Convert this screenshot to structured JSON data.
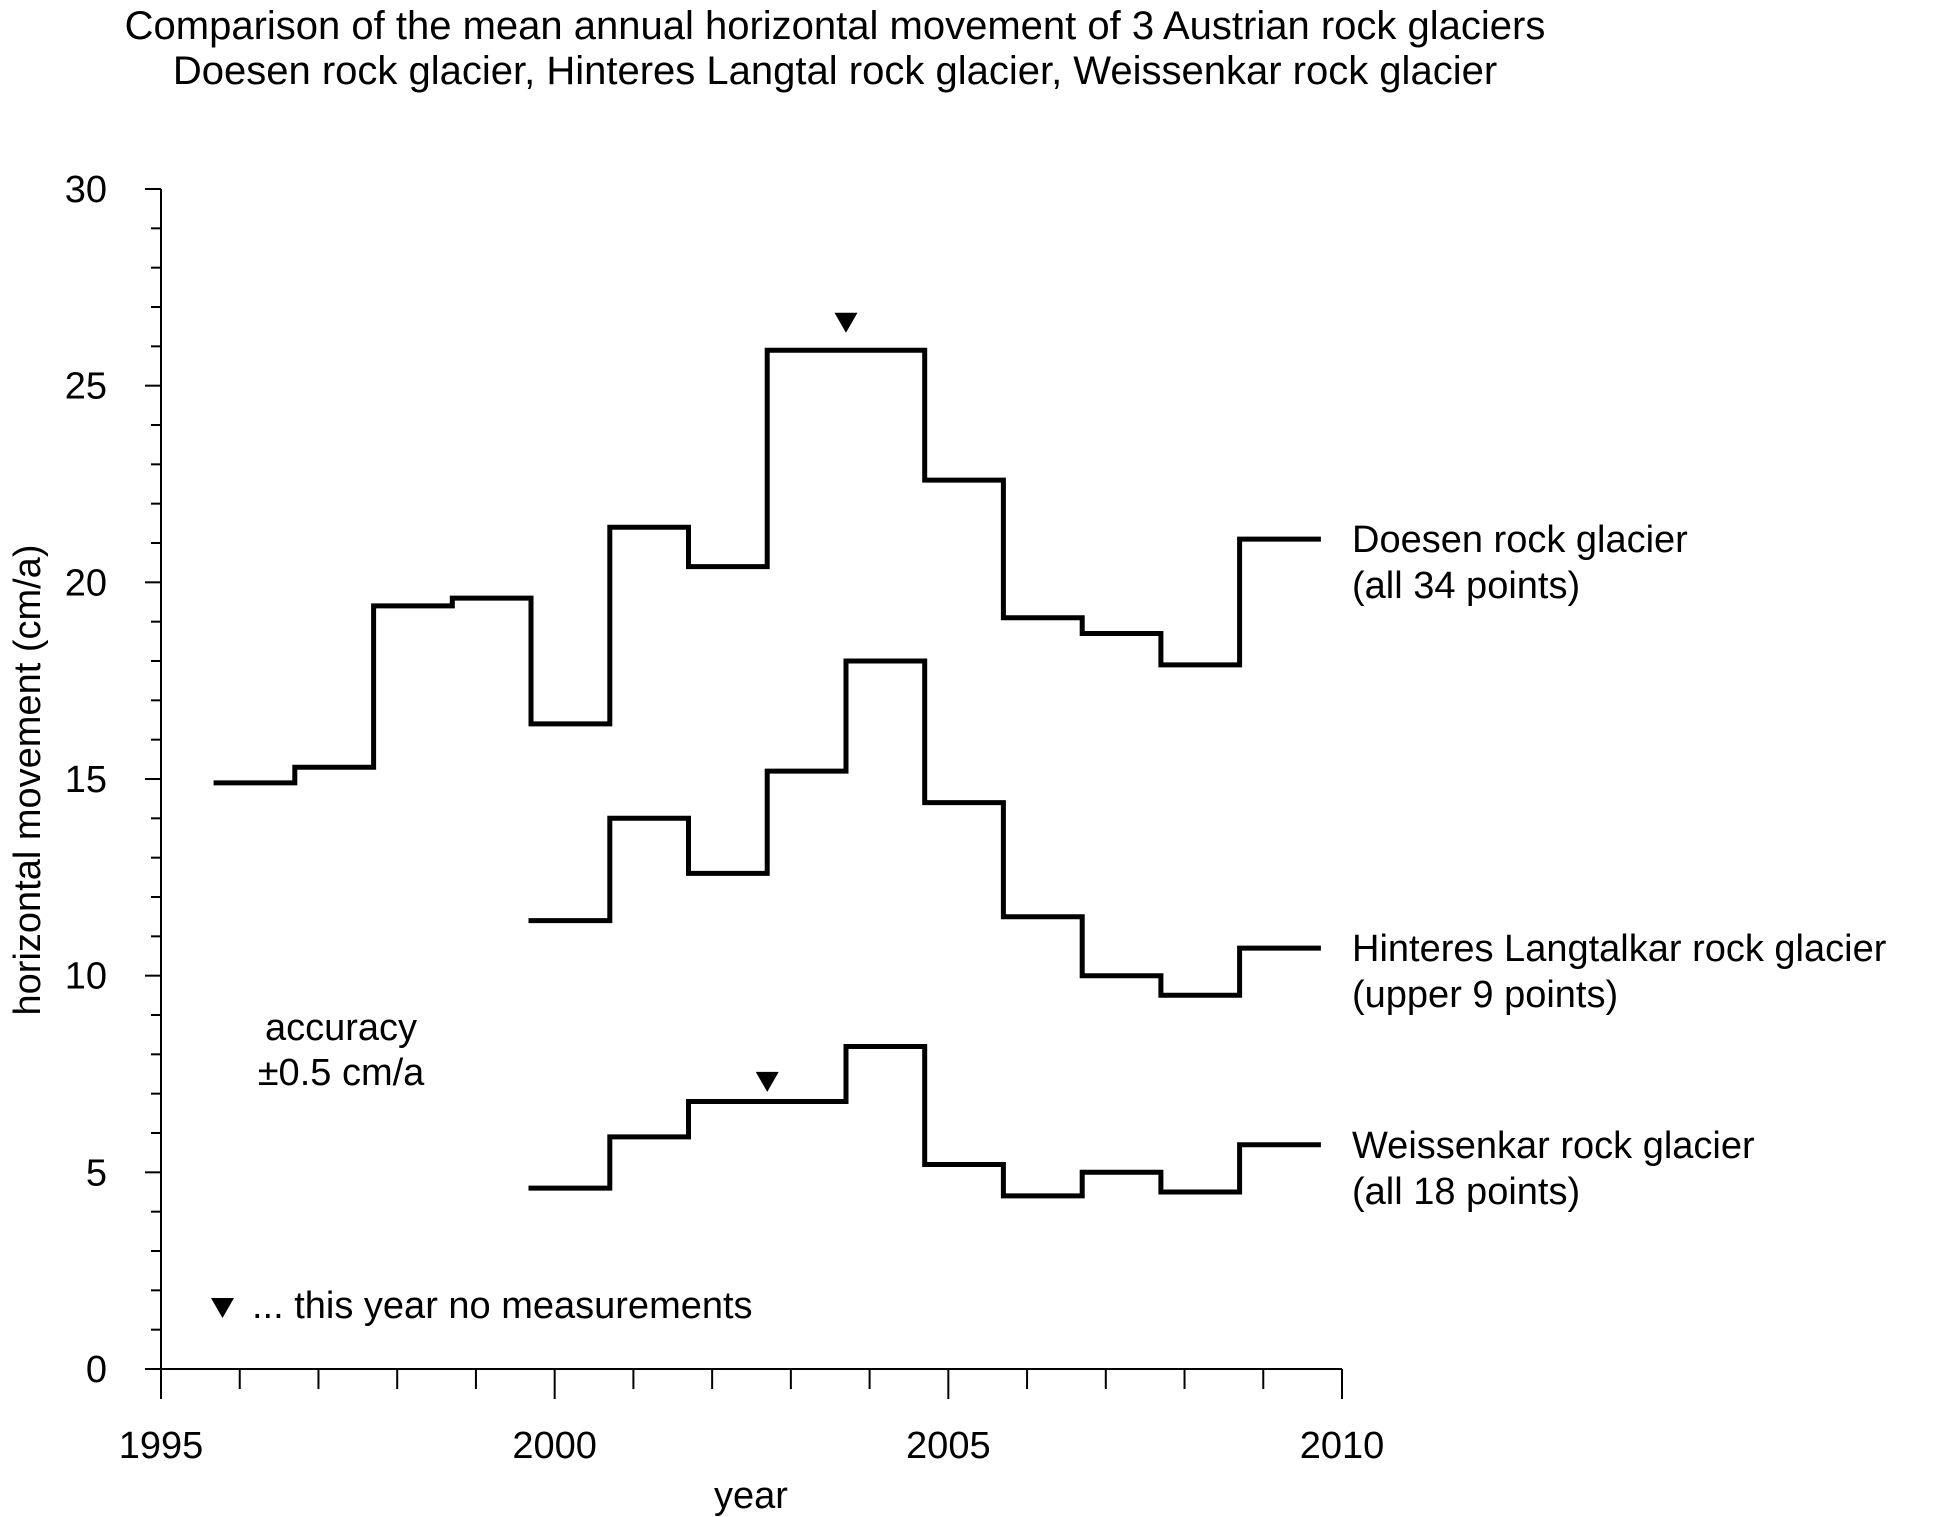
{
  "chart_data": {
    "type": "line",
    "step": true,
    "title": "Comparison of the mean annual horizontal movement of 3 Austrian rock glaciers",
    "subtitle": "Doesen rock glacier, Hinteres Langtal rock glacier, Weissenkar rock glacier",
    "xlabel": "year",
    "ylabel": "horizontal movement (cm/a)",
    "xlim": [
      1995,
      2010
    ],
    "ylim": [
      0,
      30
    ],
    "x_ticks": [
      1995,
      2000,
      2005,
      2010
    ],
    "y_ticks": [
      0,
      5,
      10,
      15,
      20,
      25,
      30
    ],
    "x_minor_step": 1,
    "y_minor_step": 1,
    "grid": false,
    "series": [
      {
        "name": "Doesen rock glacier",
        "note": "(all 34 points)",
        "periods": [
          {
            "start": 1995.7,
            "end": 1996.7,
            "value": 14.9
          },
          {
            "start": 1996.7,
            "end": 1997.7,
            "value": 15.3
          },
          {
            "start": 1997.7,
            "end": 1998.7,
            "value": 19.4
          },
          {
            "start": 1998.7,
            "end": 1999.7,
            "value": 19.6
          },
          {
            "start": 1999.7,
            "end": 2000.7,
            "value": 16.4
          },
          {
            "start": 2000.7,
            "end": 2001.7,
            "value": 21.4
          },
          {
            "start": 2001.7,
            "end": 2002.7,
            "value": 20.4
          },
          {
            "start": 2002.7,
            "end": 2004.7,
            "value": 25.9
          },
          {
            "start": 2004.7,
            "end": 2005.7,
            "value": 22.6
          },
          {
            "start": 2005.7,
            "end": 2006.7,
            "value": 19.1
          },
          {
            "start": 2006.7,
            "end": 2007.7,
            "value": 18.7
          },
          {
            "start": 2007.7,
            "end": 2008.7,
            "value": 17.9
          },
          {
            "start": 2008.7,
            "end": 2009.7,
            "value": 21.1
          }
        ]
      },
      {
        "name": "Hinteres Langtalkar rock glacier",
        "note": "(upper 9 points)",
        "periods": [
          {
            "start": 1999.7,
            "end": 2000.7,
            "value": 11.4
          },
          {
            "start": 2000.7,
            "end": 2001.7,
            "value": 14.0
          },
          {
            "start": 2001.7,
            "end": 2002.7,
            "value": 12.6
          },
          {
            "start": 2002.7,
            "end": 2003.7,
            "value": 15.2
          },
          {
            "start": 2003.7,
            "end": 2004.7,
            "value": 18.0
          },
          {
            "start": 2004.7,
            "end": 2005.7,
            "value": 14.4
          },
          {
            "start": 2005.7,
            "end": 2006.7,
            "value": 11.5
          },
          {
            "start": 2006.7,
            "end": 2007.7,
            "value": 10.0
          },
          {
            "start": 2007.7,
            "end": 2008.7,
            "value": 9.5
          },
          {
            "start": 2008.7,
            "end": 2009.7,
            "value": 10.7
          }
        ]
      },
      {
        "name": "Weissenkar rock glacier",
        "note": "(all 18 points)",
        "periods": [
          {
            "start": 1999.7,
            "end": 2000.7,
            "value": 4.6
          },
          {
            "start": 2000.7,
            "end": 2001.7,
            "value": 5.9
          },
          {
            "start": 2001.7,
            "end": 2003.7,
            "value": 6.8
          },
          {
            "start": 2003.7,
            "end": 2004.7,
            "value": 8.2
          },
          {
            "start": 2004.7,
            "end": 2005.7,
            "value": 5.2
          },
          {
            "start": 2005.7,
            "end": 2006.7,
            "value": 4.4
          },
          {
            "start": 2006.7,
            "end": 2007.7,
            "value": 5.0
          },
          {
            "start": 2007.7,
            "end": 2008.7,
            "value": 4.5
          },
          {
            "start": 2008.7,
            "end": 2009.7,
            "value": 5.7
          }
        ]
      }
    ],
    "markers": [
      {
        "year": 2003.7,
        "value": 26.6,
        "meaning": "no measurements",
        "series": "Doesen rock glacier"
      },
      {
        "year": 2002.7,
        "value": 7.3,
        "meaning": "no measurements",
        "series": "Weissenkar rock glacier"
      }
    ],
    "annotations": {
      "accuracy_line1": "accuracy",
      "accuracy_line2": "±0.5 cm/a",
      "legend_marker_text": "... this year no measurements"
    }
  }
}
